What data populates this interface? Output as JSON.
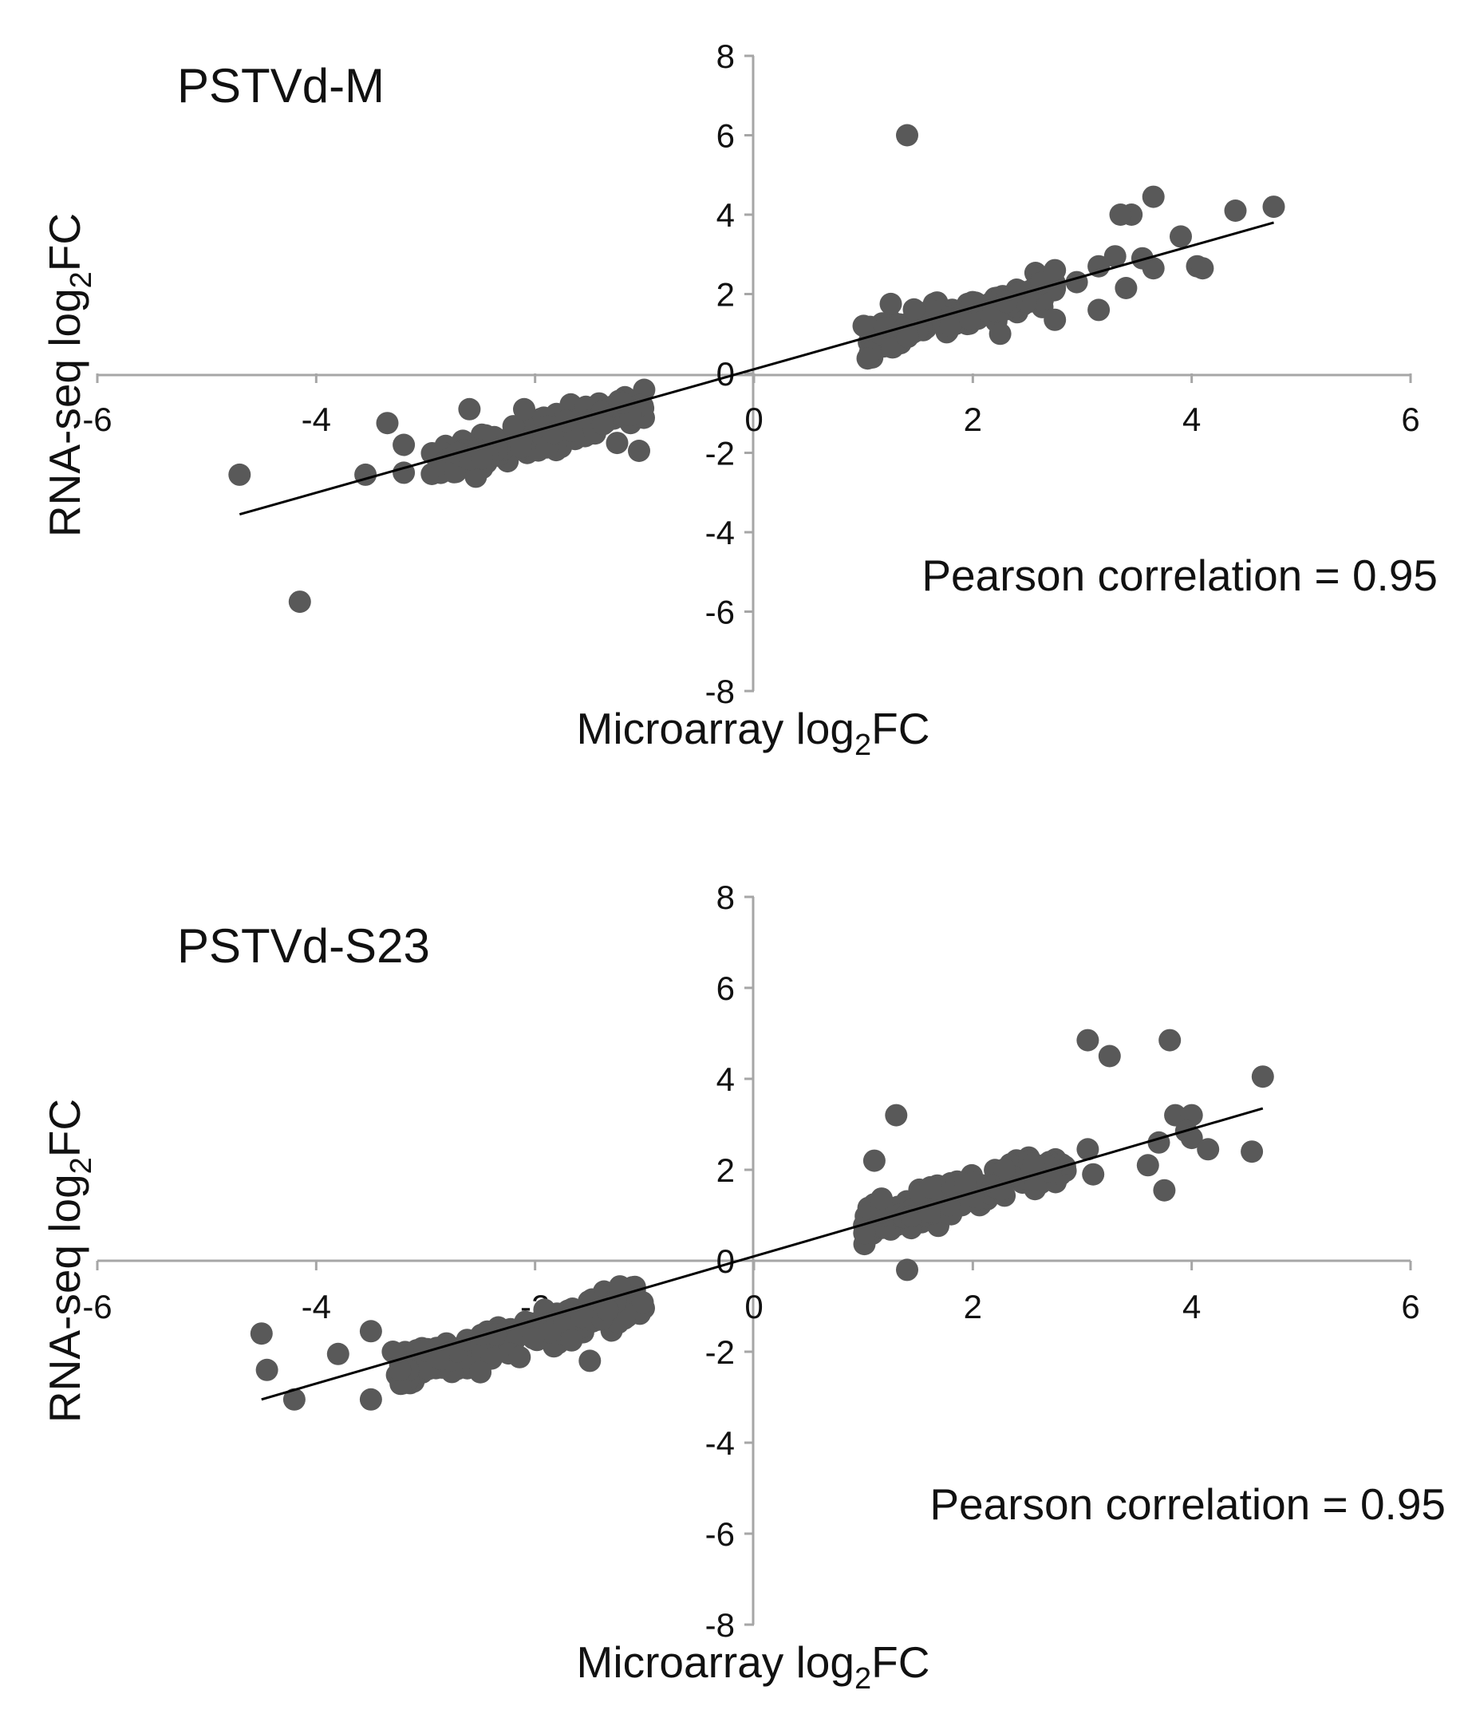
{
  "colors": {
    "point": "#595959",
    "axis": "#a6a6a6",
    "trend": "#000000",
    "text": "#111111"
  },
  "chart_data": [
    {
      "type": "scatter",
      "title": "PSTVd-M",
      "xlabel": {
        "main": "Microarray log",
        "sub": "2",
        "suffix": "FC"
      },
      "ylabel": {
        "main": "RNA-seq log",
        "sub": "2",
        "suffix": "FC"
      },
      "xlim": [
        -6,
        6
      ],
      "ylim": [
        -8,
        8
      ],
      "xticks": [
        -6,
        -4,
        -2,
        0,
        2,
        4,
        6
      ],
      "yticks": [
        -8,
        -6,
        -4,
        -2,
        0,
        2,
        4,
        6,
        8
      ],
      "annotation": "Pearson correlation = 0.95",
      "trendline": {
        "x1": -4.7,
        "y1": -3.55,
        "x2": 4.75,
        "y2": 3.8
      },
      "outliers": [
        [
          1.4,
          6.0
        ],
        [
          3.65,
          4.45
        ],
        [
          4.75,
          4.2
        ],
        [
          4.4,
          4.1
        ],
        [
          3.45,
          4.0
        ],
        [
          3.35,
          4.0
        ],
        [
          3.9,
          3.45
        ],
        [
          3.55,
          2.9
        ],
        [
          3.3,
          2.95
        ],
        [
          3.65,
          2.65
        ],
        [
          4.05,
          2.7
        ],
        [
          4.1,
          2.65
        ],
        [
          3.15,
          2.7
        ],
        [
          3.4,
          2.15
        ],
        [
          3.15,
          1.6
        ],
        [
          2.75,
          2.6
        ],
        [
          2.95,
          2.3
        ],
        [
          2.25,
          1.0
        ],
        [
          2.75,
          1.35
        ],
        [
          1.25,
          1.75
        ],
        [
          -4.7,
          -2.55
        ],
        [
          -4.15,
          -5.75
        ],
        [
          -3.35,
          -1.25
        ],
        [
          -3.2,
          -1.8
        ],
        [
          -3.2,
          -2.5
        ],
        [
          -3.55,
          -2.55
        ],
        [
          -2.6,
          -0.9
        ],
        [
          -2.1,
          -0.9
        ],
        [
          -1.05,
          -1.95
        ],
        [
          -1.25,
          -1.75
        ]
      ],
      "clusters": [
        {
          "x_range": [
            1.0,
            2.75
          ],
          "slope": 0.78,
          "intercept": 0.02,
          "spread": 0.45,
          "count": 130
        },
        {
          "x_range": [
            -2.95,
            -1.0
          ],
          "slope": 0.78,
          "intercept": -0.02,
          "spread": 0.45,
          "count": 150
        }
      ]
    },
    {
      "type": "scatter",
      "title": "PSTVd-S23",
      "xlabel": {
        "main": "Microarray log",
        "sub": "2",
        "suffix": "FC"
      },
      "ylabel": {
        "main": "RNA-seq log",
        "sub": "2",
        "suffix": "FC"
      },
      "xlim": [
        -6,
        6
      ],
      "ylim": [
        -8,
        8
      ],
      "xticks": [
        -6,
        -4,
        -2,
        0,
        2,
        4,
        6
      ],
      "yticks": [
        -8,
        -6,
        -4,
        -2,
        0,
        2,
        4,
        6,
        8
      ],
      "annotation": "Pearson correlation = 0.95",
      "trendline": {
        "x1": -4.5,
        "y1": -3.05,
        "x2": 4.65,
        "y2": 3.35
      },
      "outliers": [
        [
          3.05,
          4.85
        ],
        [
          3.8,
          4.85
        ],
        [
          3.25,
          4.5
        ],
        [
          4.65,
          4.05
        ],
        [
          3.85,
          3.2
        ],
        [
          4.0,
          3.2
        ],
        [
          3.95,
          2.85
        ],
        [
          3.7,
          2.6
        ],
        [
          4.0,
          2.7
        ],
        [
          4.15,
          2.45
        ],
        [
          4.55,
          2.4
        ],
        [
          3.6,
          2.1
        ],
        [
          3.75,
          1.55
        ],
        [
          3.1,
          1.9
        ],
        [
          3.05,
          2.45
        ],
        [
          1.3,
          3.2
        ],
        [
          1.1,
          2.2
        ],
        [
          1.4,
          -0.2
        ],
        [
          -4.5,
          -1.6
        ],
        [
          -4.45,
          -2.4
        ],
        [
          -4.2,
          -3.05
        ],
        [
          -3.5,
          -3.05
        ],
        [
          -3.8,
          -2.05
        ],
        [
          -3.5,
          -1.55
        ],
        [
          -3.3,
          -2.0
        ],
        [
          -1.5,
          -2.2
        ],
        [
          -2.5,
          -2.45
        ]
      ],
      "clusters": [
        {
          "x_range": [
            1.0,
            2.85
          ],
          "slope": 0.72,
          "intercept": 0.05,
          "spread": 0.45,
          "count": 140
        },
        {
          "x_range": [
            -3.3,
            -1.0
          ],
          "slope": 0.72,
          "intercept": -0.1,
          "spread": 0.45,
          "count": 160
        }
      ]
    }
  ]
}
